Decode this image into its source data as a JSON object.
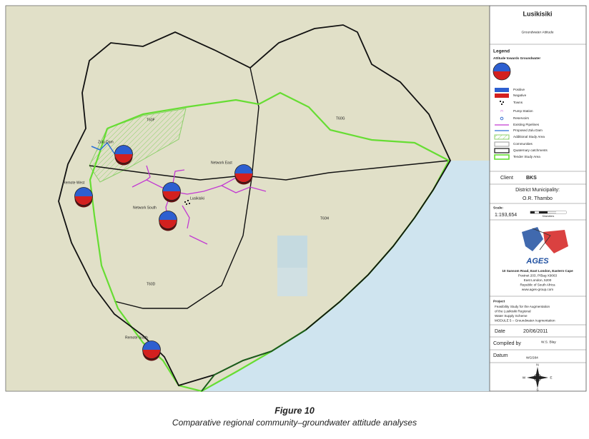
{
  "map": {
    "labels": [
      "Zulu Dam",
      "Remote West",
      "Network East",
      "Lusikisiki",
      "Network South",
      "Remote South",
      "T60F",
      "T60G",
      "T60H",
      "T60D"
    ]
  },
  "panel": {
    "title": "Lusikisiki",
    "subtitle": "Groundwater Attitude",
    "legend": {
      "title": "Legend",
      "subtitle": "Attitude towards Groundwater",
      "items": [
        "Positive",
        "Negative",
        "Towns",
        "Pump Station",
        "Reservoirs",
        "Existing Pipelines",
        "Proposed Zulu Dam",
        "Additional Study Area",
        "Communities",
        "Quaternary catchments",
        "Tender Study Area"
      ]
    },
    "client": {
      "label": "Client",
      "value": "BKS"
    },
    "district": {
      "label": "District Municipality:",
      "value": "O.R. Thambo"
    },
    "scale": {
      "label": "Scale:",
      "value": "1:193,654",
      "unit": "Kilometers"
    },
    "logo": "AGES",
    "address": [
      "10 Sansom Road, East London, Eastern Cape",
      "Postnet 203, P/Bag X9063",
      "East London, 5200",
      "Republic of South Africa",
      "www.ages-group.com"
    ],
    "project": {
      "label": "Project",
      "lines": [
        "Feasibility Study for the Augmentation",
        "of the Lusikisiki Regional",
        "Water Supply Scheme",
        "MODULE 5 – Groundwater Augmentation"
      ]
    },
    "date": {
      "label": "Date",
      "value": "20/06/2011"
    },
    "compiled": {
      "label": "Compiled by",
      "value": "W.S. Blay"
    },
    "datum": {
      "label": "Datum",
      "value": "WGS84"
    },
    "compass": [
      "N",
      "E",
      "S",
      "W"
    ]
  },
  "caption": {
    "figure": "Figure 10",
    "text": "Comparative regional community–groundwater attitude analyses"
  }
}
